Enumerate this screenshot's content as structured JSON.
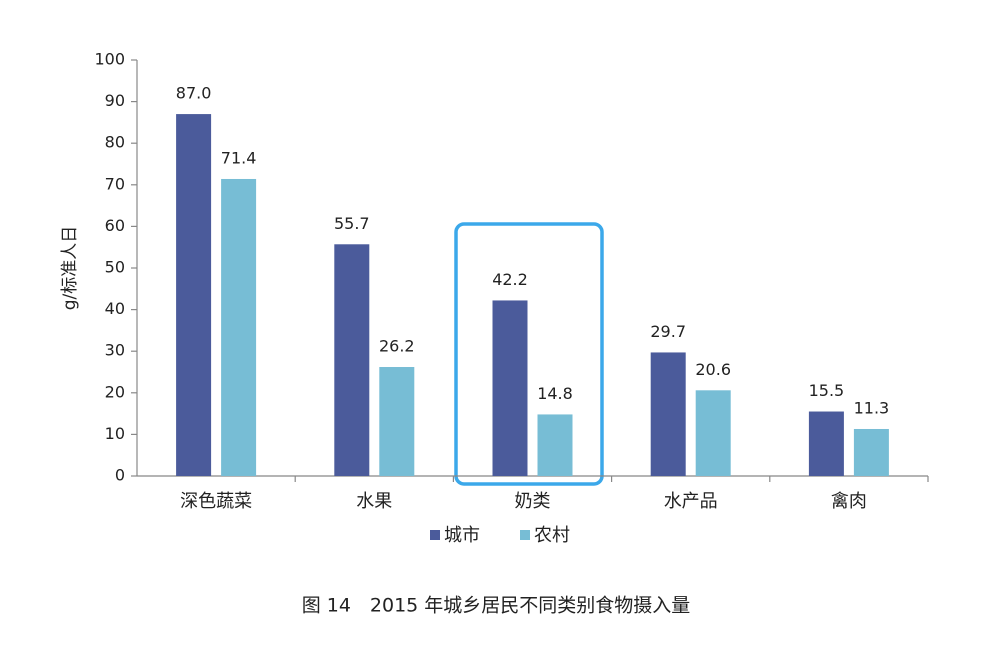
{
  "chart_data": {
    "type": "bar",
    "ylabel": "g/标准人日",
    "caption": "图 14　2015 年城乡居民不同类别食物摄入量",
    "categories": [
      "深色蔬菜",
      "水果",
      "奶类",
      "水产品",
      "禽肉"
    ],
    "series": [
      {
        "name": "城市",
        "color": "#4b5b9b",
        "values": [
          87.0,
          55.7,
          42.2,
          29.7,
          15.5
        ],
        "value_labels": [
          "87.0",
          "55.7",
          "42.2",
          "29.7",
          "15.5"
        ]
      },
      {
        "name": "农村",
        "color": "#77bdd5",
        "values": [
          71.4,
          26.2,
          14.8,
          20.6,
          11.3
        ],
        "value_labels": [
          "71.4",
          "26.2",
          "14.8",
          "20.6",
          "11.3"
        ]
      }
    ],
    "ylim": [
      0,
      100
    ],
    "yticks": [
      0,
      10,
      20,
      30,
      40,
      50,
      60,
      70,
      80,
      90,
      100
    ],
    "grid": false
  }
}
